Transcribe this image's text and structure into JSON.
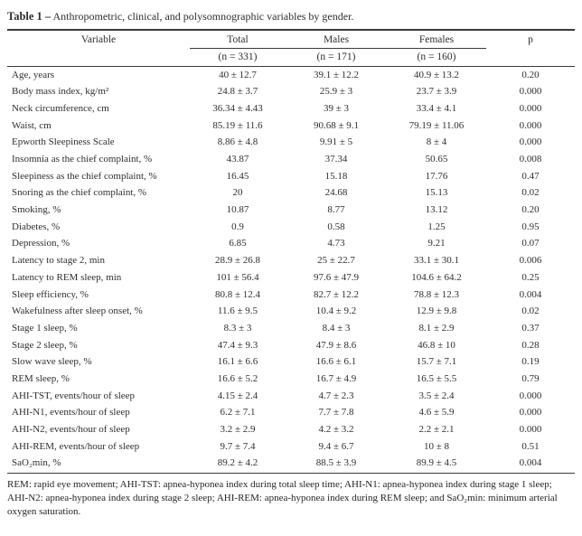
{
  "title": {
    "label": "Table 1 –",
    "text": "Anthropometric, clinical, and polysomnographic variables by gender."
  },
  "table": {
    "headers": {
      "variable": "Variable",
      "total": "Total",
      "males": "Males",
      "females": "Females",
      "p": "p"
    },
    "subheaders": {
      "total": "(n = 331)",
      "males": "(n = 171)",
      "females": "(n = 160)"
    },
    "rows": [
      {
        "variable": "Age, years",
        "total": "40 ± 12.7",
        "males": "39.1 ± 12.2",
        "females": "40.9 ± 13.2",
        "p": "0.20"
      },
      {
        "variable": "Body mass index, kg/m²",
        "total": "24.8 ± 3.7",
        "males": "25.9 ± 3",
        "females": "23.7 ± 3.9",
        "p": "0.000"
      },
      {
        "variable": "Neck circumference, cm",
        "total": "36.34 ± 4.43",
        "males": "39 ± 3",
        "females": "33.4 ± 4.1",
        "p": "0.000"
      },
      {
        "variable": "Waist, cm",
        "total": "85.19 ± 11.6",
        "males": "90.68 ± 9.1",
        "females": "79.19 ± 11.06",
        "p": "0.000"
      },
      {
        "variable": "Epworth Sleepiness Scale",
        "total": "8.86 ± 4.8",
        "males": "9.91 ± 5",
        "females": "8 ± 4",
        "p": "0.000"
      },
      {
        "variable": "Insomnia as the chief complaint, %",
        "total": "43.87",
        "males": "37.34",
        "females": "50.65",
        "p": "0.008"
      },
      {
        "variable": "Sleepiness as the chief complaint, %",
        "total": "16.45",
        "males": "15.18",
        "females": "17.76",
        "p": "0.47"
      },
      {
        "variable": "Snoring as the chief complaint, %",
        "total": "20",
        "males": "24.68",
        "females": "15.13",
        "p": "0.02"
      },
      {
        "variable": "Smoking, %",
        "total": "10.87",
        "males": "8.77",
        "females": "13.12",
        "p": "0.20"
      },
      {
        "variable": "Diabetes, %",
        "total": "0.9",
        "males": "0.58",
        "females": "1.25",
        "p": "0.95"
      },
      {
        "variable": "Depression, %",
        "total": "6.85",
        "males": "4.73",
        "females": "9.21",
        "p": "0.07"
      },
      {
        "variable": "Latency to stage 2, min",
        "total": "28.9 ± 26.8",
        "males": "25 ± 22.7",
        "females": "33.1 ± 30.1",
        "p": "0.006"
      },
      {
        "variable": "Latency to REM sleep, min",
        "total": "101 ± 56.4",
        "males": "97.6 ± 47.9",
        "females": "104.6 ± 64.2",
        "p": "0.25"
      },
      {
        "variable": "Sleep efficiency, %",
        "total": "80.8 ± 12.4",
        "males": "82.7 ± 12.2",
        "females": "78.8 ± 12.3",
        "p": "0.004"
      },
      {
        "variable": "Wakefulness after sleep onset, %",
        "total": "11.6 ± 9.5",
        "males": "10.4 ± 9.2",
        "females": "12.9 ± 9.8",
        "p": "0.02"
      },
      {
        "variable": "Stage 1 sleep, %",
        "total": "8.3 ± 3",
        "males": "8.4 ± 3",
        "females": "8.1 ± 2.9",
        "p": "0.37"
      },
      {
        "variable": "Stage 2 sleep, %",
        "total": "47.4 ± 9.3",
        "males": "47.9 ± 8.6",
        "females": "46.8 ± 10",
        "p": "0.28"
      },
      {
        "variable": "Slow wave sleep, %",
        "total": "16.1 ± 6.6",
        "males": "16.6 ± 6.1",
        "females": "15.7 ± 7.1",
        "p": "0.19"
      },
      {
        "variable": "REM sleep, %",
        "total": "16.6 ± 5.2",
        "males": "16.7 ± 4.9",
        "females": "16.5 ± 5.5",
        "p": "0.79"
      },
      {
        "variable": "AHI-TST, events/hour of sleep",
        "total": "4.15 ± 2.4",
        "males": "4.7 ± 2.3",
        "females": "3.5 ± 2.4",
        "p": "0.000"
      },
      {
        "variable": "AHI-N1, events/hour of sleep",
        "total": "6.2 ± 7.1",
        "males": "7.7 ± 7.8",
        "females": "4.6 ± 5.9",
        "p": "0.000"
      },
      {
        "variable": "AHI-N2, events/hour of sleep",
        "total": "3.2 ± 2.9",
        "males": "4.2 ± 3.2",
        "females": "2.2 ± 2.1",
        "p": "0.000"
      },
      {
        "variable": "AHI-REM, events/hour of sleep",
        "total": "9.7 ± 7.4",
        "males": "9.4 ± 6.7",
        "females": "10 ± 8",
        "p": "0.51"
      },
      {
        "variable": "SaO₂min, %",
        "total": "89.2 ± 4.2",
        "males": "88.5 ± 3.9",
        "females": "89.9 ± 4.5",
        "p": "0.004"
      }
    ]
  },
  "footnote": "REM: rapid eye movement; AHI-TST: apnea-hyponea index during total sleep time; AHI-N1: apnea-hyponea index during stage 1 sleep; AHI-N2: apnea-hyponea index during stage 2 sleep; AHI-REM: apnea-hyponea index during REM sleep; and SaO₂min: minimum arterial oxygen saturation.",
  "colors": {
    "rule": "#3a3a3a",
    "text": "#2e2e2e",
    "background": "#ffffff"
  }
}
